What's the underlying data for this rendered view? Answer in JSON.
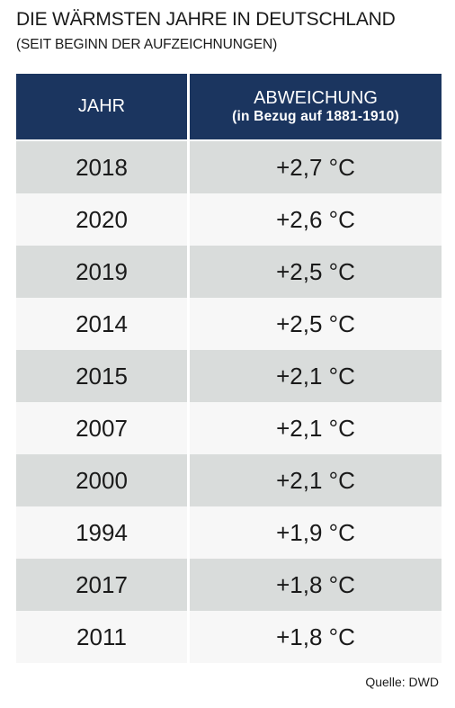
{
  "title": "DIE WÄRMSTEN JAHRE IN DEUTSCHLAND",
  "subtitle": "(SEIT BEGINN DER AUFZEICHNUNGEN)",
  "source": "Quelle: DWD",
  "colors": {
    "header_bg": "#1b355f",
    "header_text": "#ffffff",
    "row_shaded": "#d9dcdb",
    "row_plain": "#f7f7f7"
  },
  "chart_data": {
    "type": "table",
    "title": "DIE WÄRMSTEN JAHRE IN DEUTSCHLAND",
    "subtitle": "(SEIT BEGINN DER AUFZEICHNUNGEN)",
    "columns": [
      {
        "label": "JAHR"
      },
      {
        "label": "ABWEICHUNG",
        "sublabel": "(in Bezug auf 1881-1910)"
      }
    ],
    "rows": [
      {
        "year": "2018",
        "deviation": "+2,7 °C",
        "value": 2.7
      },
      {
        "year": "2020",
        "deviation": "+2,6 °C",
        "value": 2.6
      },
      {
        "year": "2019",
        "deviation": "+2,5 °C",
        "value": 2.5
      },
      {
        "year": "2014",
        "deviation": "+2,5 °C",
        "value": 2.5
      },
      {
        "year": "2015",
        "deviation": "+2,1 °C",
        "value": 2.1
      },
      {
        "year": "2007",
        "deviation": "+2,1 °C",
        "value": 2.1
      },
      {
        "year": "2000",
        "deviation": "+2,1 °C",
        "value": 2.1
      },
      {
        "year": "1994",
        "deviation": "+1,9 °C",
        "value": 1.9
      },
      {
        "year": "2017",
        "deviation": "+1,8 °C",
        "value": 1.8
      },
      {
        "year": "2011",
        "deviation": "+1,8 °C",
        "value": 1.8
      }
    ],
    "source": "Quelle: DWD"
  }
}
